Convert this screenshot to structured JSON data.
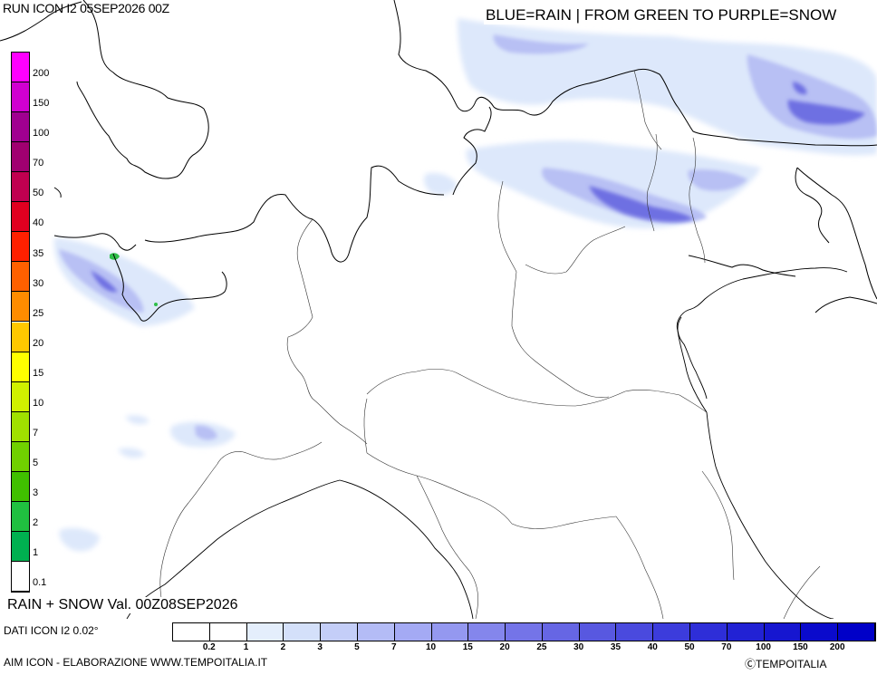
{
  "header": {
    "run_label": "RUN ICON I2 05SEP2026 00Z",
    "legend_title": "BLUE=RAIN | FROM GREEN TO PURPLE=SNOW"
  },
  "footer": {
    "valid_label": "RAIN + SNOW Val. 00Z08SEP2026",
    "data_source": "DATI ICON I2 0.02°",
    "credits": "AIM ICON - ELABORAZIONE WWW.TEMPOITALIA.IT",
    "copyright": "ⒸTEMPOITALIA"
  },
  "snow_scale": {
    "labels": [
      "200",
      "150",
      "100",
      "70",
      "50",
      "40",
      "35",
      "30",
      "25",
      "20",
      "15",
      "10",
      "7",
      "5",
      "3",
      "2",
      "1",
      "0.1"
    ],
    "colors": [
      "#ff00ff",
      "#d000d0",
      "#a00090",
      "#a00070",
      "#c00050",
      "#e00020",
      "#ff2000",
      "#ff6000",
      "#ff8c00",
      "#ffc800",
      "#ffff00",
      "#d0f000",
      "#a0e000",
      "#70d000",
      "#40c000",
      "#20c040",
      "#00b050",
      "#ffffff"
    ]
  },
  "rain_scale": {
    "labels": [
      "0.2",
      "1",
      "2",
      "3",
      "5",
      "7",
      "10",
      "15",
      "20",
      "25",
      "30",
      "35",
      "40",
      "50",
      "70",
      "100",
      "150",
      "200"
    ],
    "colors": [
      "#ffffff",
      "#e4eefc",
      "#d4e0fa",
      "#c4cef8",
      "#b4bcf6",
      "#a4aaf4",
      "#9498f0",
      "#8486ec",
      "#7474e8",
      "#6666e4",
      "#5858e0",
      "#4a4ade",
      "#3c3cdc",
      "#2e2ed8",
      "#2222d4",
      "#1616d0",
      "#0a0acc",
      "#0000c8"
    ]
  },
  "precip_colors": {
    "rain_light": "#dde8fb",
    "rain_mid": "#b8c0f4",
    "rain_heavy": "#6e70e2",
    "snow": "#2fbf4a"
  }
}
